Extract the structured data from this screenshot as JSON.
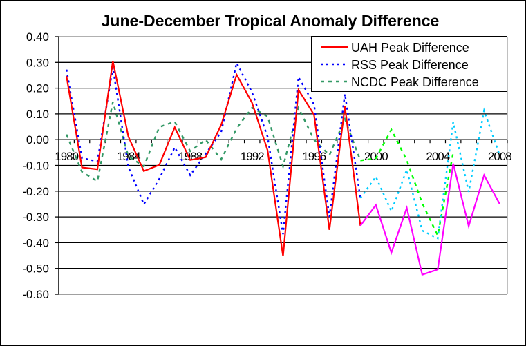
{
  "chart_data": {
    "type": "line",
    "title": "June-December Tropical Anomaly Difference",
    "xlabel": "",
    "ylabel": "",
    "ylim": [
      -0.6,
      0.4
    ],
    "ytick_step": 0.1,
    "yticks": [
      "0.40",
      "0.30",
      "0.20",
      "0.10",
      "0.00",
      "-0.10",
      "-0.20",
      "-0.30",
      "-0.40",
      "-0.50",
      "-0.60"
    ],
    "x": [
      1980,
      1981,
      1982,
      1983,
      1984,
      1985,
      1986,
      1987,
      1988,
      1989,
      1990,
      1991,
      1992,
      1993,
      1994,
      1995,
      1996,
      1997,
      1998,
      1999,
      2000,
      2001,
      2002,
      2003,
      2004,
      2005,
      2006,
      2007,
      2008
    ],
    "xtick_labels": [
      "1980",
      "1984",
      "1988",
      "1992",
      "1996",
      "2000",
      "2004",
      "2008"
    ],
    "grid": "horizontal",
    "legend_position": "top-right",
    "series": [
      {
        "name": "UAH Peak Difference",
        "style": "solid",
        "color": "#ff0000",
        "color_after_1999": "#ff00ff",
        "values": [
          0.247,
          -0.108,
          -0.115,
          0.305,
          0.012,
          -0.122,
          -0.098,
          0.048,
          -0.079,
          -0.068,
          0.057,
          0.252,
          0.143,
          -0.041,
          -0.452,
          0.193,
          0.097,
          -0.35,
          0.129,
          -0.334,
          -0.254,
          -0.439,
          -0.265,
          -0.524,
          -0.504,
          -0.093,
          -0.336,
          -0.138,
          -0.249
        ]
      },
      {
        "name": "RSS Peak Difference",
        "style": "dotted",
        "color": "#0000ff",
        "color_after_1999": "#00ccff",
        "values": [
          0.272,
          -0.071,
          -0.085,
          0.28,
          -0.106,
          -0.251,
          -0.152,
          -0.03,
          -0.138,
          -0.055,
          0.03,
          0.298,
          0.183,
          0.012,
          -0.367,
          0.243,
          0.137,
          -0.3,
          0.178,
          -0.227,
          -0.144,
          -0.278,
          -0.117,
          -0.353,
          -0.383,
          0.068,
          -0.203,
          0.113,
          -0.06
        ]
      },
      {
        "name": "NCDC Peak Difference",
        "style": "dashed",
        "color": "#339966",
        "color_after_1999": "#00ff00",
        "values": [
          0.02,
          -0.125,
          -0.162,
          0.146,
          -0.064,
          -0.104,
          0.049,
          0.07,
          -0.045,
          0.0,
          -0.077,
          0.044,
          0.124,
          0.09,
          -0.104,
          0.124,
          0.0,
          -0.06,
          0.08,
          -0.081,
          -0.073,
          0.039,
          -0.08,
          -0.247,
          -0.372,
          -0.05,
          null,
          null,
          null
        ]
      }
    ]
  }
}
